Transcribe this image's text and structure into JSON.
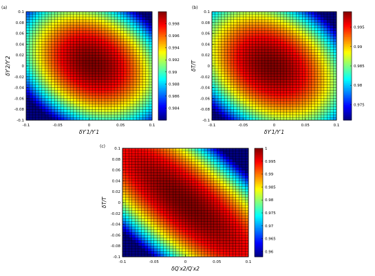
{
  "colors": {
    "grid_line": "#000000",
    "background": "#ffffff"
  },
  "chart_data": [
    {
      "type": "heatmap",
      "panel_label": "(a)",
      "xlabel": "δY′1/Y′1",
      "ylabel": "δY′2/Y′2",
      "xlim": [
        -0.1,
        0.1
      ],
      "ylim": [
        -0.1,
        0.1
      ],
      "xticks": [
        "-0.1",
        "-0.05",
        "0",
        "0.05",
        "0.1"
      ],
      "yticks": [
        "0.1",
        "0.08",
        "0.06",
        "0.04",
        "0.02",
        "0",
        "-0.02",
        "-0.04",
        "-0.06",
        "-0.08",
        "-0.1"
      ],
      "colorbar_ticks": [
        "0.998",
        "0.996",
        "0.994",
        "0.992",
        "0.99",
        "0.988",
        "0.986",
        "0.984"
      ],
      "colorbar_range": [
        0.982,
        1.0
      ],
      "colormap": "jet",
      "grid": true,
      "surface": {
        "center": [
          0.005,
          0.005
        ],
        "peak": 1.0,
        "a": 1.0,
        "b": 1.0,
        "c": 0.5
      }
    },
    {
      "type": "heatmap",
      "panel_label": "(b)",
      "xlabel": "δY′1/Y′1",
      "ylabel": "δT/T",
      "xlim": [
        -0.1,
        0.1
      ],
      "ylim": [
        -0.1,
        0.1
      ],
      "xticks": [
        "-0.1",
        "-0.05",
        "0",
        "0.05",
        "0.1"
      ],
      "yticks": [
        "0.1",
        "0.08",
        "0.06",
        "0.04",
        "0.02",
        "0",
        "-0.02",
        "-0.04",
        "-0.06",
        "-0.08",
        "-0.1"
      ],
      "colorbar_ticks": [
        "0.995",
        "0.99",
        "0.985",
        "0.98",
        "0.975"
      ],
      "colorbar_range": [
        0.971,
        0.999
      ],
      "colormap": "jet",
      "grid": true,
      "surface": {
        "center": [
          -0.005,
          0.0
        ],
        "peak": 0.999,
        "a": 1.4,
        "b": 1.4,
        "c": 0.8
      }
    },
    {
      "type": "heatmap",
      "panel_label": "(c)",
      "xlabel": "δQ′x2/Q′x2",
      "ylabel": "δT/T",
      "xlim": [
        -0.1,
        0.1
      ],
      "ylim": [
        -0.1,
        0.1
      ],
      "xticks": [
        "-0.1",
        "-0.05",
        "0",
        "0.05",
        "0.1"
      ],
      "yticks": [
        "0.1",
        "0.08",
        "0.06",
        "0.04",
        "0.02",
        "0",
        "-0.02",
        "-0.04",
        "-0.06",
        "-0.08",
        "-0.1"
      ],
      "colorbar_ticks": [
        "1",
        "0.995",
        "0.99",
        "0.985",
        "0.98",
        "0.975",
        "0.97",
        "0.965",
        "0.96"
      ],
      "colorbar_range": [
        0.958,
        1.0
      ],
      "colormap": "jet",
      "grid": true,
      "surface": {
        "center": [
          0.0,
          0.0
        ],
        "peak": 1.0,
        "a": 1.9,
        "b": 1.9,
        "c": 3.2
      }
    }
  ]
}
